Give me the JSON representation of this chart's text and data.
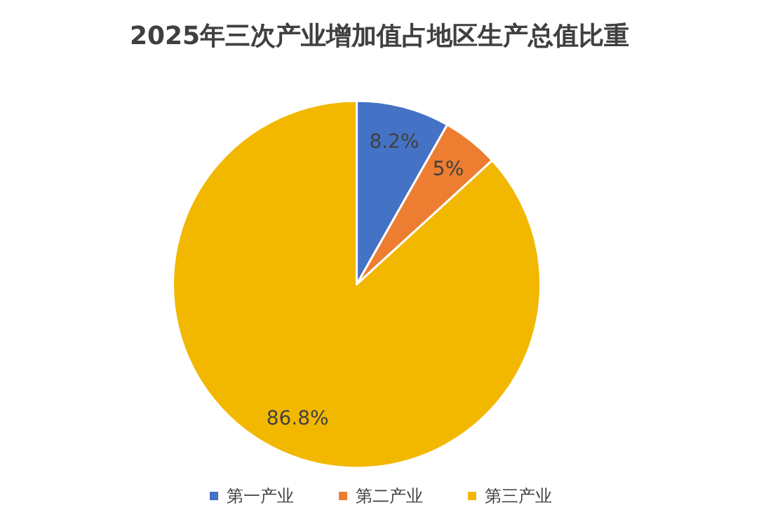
{
  "chart_data": {
    "type": "pie",
    "title": "2025年三次产业增加值占地区生产总值比重",
    "categories": [
      "第一产业",
      "第二产业",
      "第三产业"
    ],
    "values": [
      8.2,
      5,
      86.8
    ],
    "colors": [
      "#4472c4",
      "#ed7d31",
      "#f2b800"
    ],
    "value_labels": [
      "8.2%",
      "5%",
      "86.8%"
    ],
    "legend": "bottom"
  }
}
